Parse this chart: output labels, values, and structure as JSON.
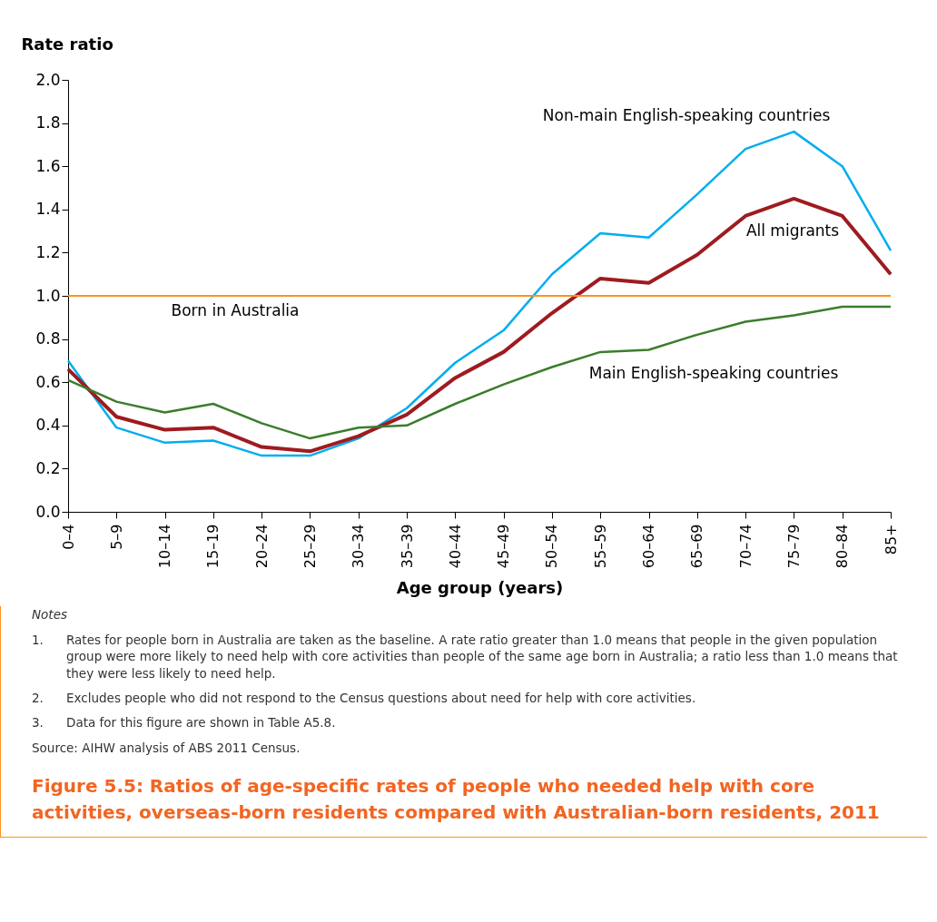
{
  "chart_data": {
    "type": "line",
    "title": "Figure 5.5: Ratios of age-specific rates of people who needed help with core activities, overseas-born residents compared with Australian-born residents, 2011",
    "xlabel": "Age group (years)",
    "ylabel": "Rate ratio",
    "categories": [
      "0–4",
      "5–9",
      "10–14",
      "15–19",
      "20–24",
      "25–29",
      "30–34",
      "35–39",
      "40–44",
      "45–49",
      "50–54",
      "55–59",
      "60–64",
      "65–69",
      "70–74",
      "75–79",
      "80–84",
      "85+"
    ],
    "series": [
      {
        "name": "Non-main English-speaking countries",
        "color": "#00aeef",
        "values": [
          0.7,
          0.39,
          0.32,
          0.33,
          0.26,
          0.26,
          0.34,
          0.48,
          0.69,
          0.84,
          1.1,
          1.29,
          1.27,
          1.47,
          1.68,
          1.76,
          1.6,
          1.21
        ]
      },
      {
        "name": "All migrants",
        "color": "#9e1b20",
        "values": [
          0.66,
          0.44,
          0.38,
          0.39,
          0.3,
          0.28,
          0.35,
          0.45,
          0.62,
          0.74,
          0.92,
          1.08,
          1.06,
          1.19,
          1.37,
          1.45,
          1.37,
          1.1
        ]
      },
      {
        "name": "Main English-speaking countries",
        "color": "#3a7d2c",
        "values": [
          0.61,
          0.51,
          0.46,
          0.5,
          0.41,
          0.34,
          0.39,
          0.4,
          0.5,
          0.59,
          0.67,
          0.74,
          0.75,
          0.82,
          0.88,
          0.91,
          0.95,
          0.95
        ]
      }
    ],
    "ref_lines": [
      {
        "axis": "y",
        "value": 1.0,
        "label": "Born in Australia",
        "color": "#f7941d"
      }
    ],
    "ylim": [
      0,
      2
    ],
    "yticks": [
      {
        "value": 0,
        "label": "0.0"
      },
      {
        "value": 0.2,
        "label": "0.2"
      },
      {
        "value": 0.4,
        "label": "0.4"
      },
      {
        "value": 0.6,
        "label": "0.6"
      },
      {
        "value": 0.8,
        "label": "0.8"
      },
      {
        "value": 1,
        "label": "1.0"
      },
      {
        "value": 1.2,
        "label": "1.2"
      },
      {
        "value": 1.4,
        "label": "1.4"
      },
      {
        "value": 1.6,
        "label": "1.6"
      },
      {
        "value": 1.8,
        "label": "1.8"
      },
      {
        "value": 2,
        "label": "2.0"
      }
    ],
    "grid": false,
    "marker": "none",
    "line_style": "solid",
    "annotations": [
      "Notes",
      "1. Rates for people born in Australia are taken as the baseline. A rate ratio greater than 1.0 means that people in the given population group were more likely to need help with core activities than people of the same age born in Australia; a ratio less than 1.0 means that they were less likely to need help.",
      "2. Excludes people who did not respond to the Census questions about need for help with core activities.",
      "3. Data for this figure are shown in Table A5.8.",
      "Source: AIHW analysis of ABS 2011 Census."
    ]
  }
}
